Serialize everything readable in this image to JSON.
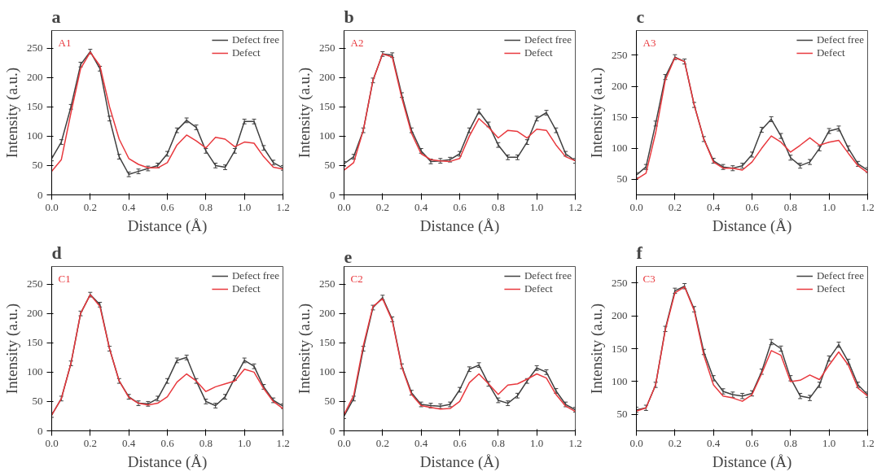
{
  "chart_data": [
    {
      "type": "line",
      "title": "a",
      "annotations": [
        "A1"
      ],
      "xlabel": "Distance (Å)",
      "ylabel": "Intensity (a.u.)",
      "x": [
        0,
        0.05,
        0.1,
        0.15,
        0.2,
        0.25,
        0.3,
        0.35,
        0.4,
        0.45,
        0.5,
        0.55,
        0.6,
        0.65,
        0.7,
        0.75,
        0.8,
        0.85,
        0.9,
        0.95,
        1.0,
        1.05,
        1.1,
        1.15,
        1.2
      ],
      "xlim": [
        0,
        1.2
      ],
      "xticks": [
        {
          "value": 0,
          "label": "0.0"
        },
        {
          "value": 0.2,
          "label": "0.2"
        },
        {
          "value": 0.4,
          "label": "0.4"
        },
        {
          "value": 0.6,
          "label": "0.6"
        },
        {
          "value": 0.8,
          "label": "0.8"
        },
        {
          "value": 1,
          "label": "1.0"
        },
        {
          "value": 1.2,
          "label": "1.2"
        }
      ],
      "ylim": [
        0,
        280
      ],
      "yticks": [
        0,
        50,
        100,
        150,
        200,
        250
      ],
      "grid": false,
      "legend": "top right",
      "series": [
        {
          "name": "Defect free",
          "color": "#404040",
          "values": [
            62,
            90,
            150,
            222,
            244,
            215,
            130,
            65,
            35,
            40,
            45,
            50,
            70,
            110,
            127,
            115,
            75,
            50,
            47,
            75,
            125,
            125,
            80,
            55,
            46
          ],
          "errors": [
            4,
            4,
            4,
            4,
            4,
            4,
            4,
            4,
            4,
            4,
            4,
            4,
            4,
            4,
            4,
            4,
            4,
            4,
            4,
            4,
            4,
            4,
            4,
            4,
            4
          ]
        },
        {
          "name": "Defect",
          "color": "#e8383d",
          "values": [
            40,
            60,
            140,
            215,
            243,
            220,
            150,
            95,
            62,
            52,
            46,
            46,
            55,
            85,
            102,
            92,
            80,
            98,
            95,
            82,
            90,
            88,
            65,
            47,
            44
          ]
        }
      ]
    },
    {
      "type": "line",
      "title": "b",
      "annotations": [
        "A2"
      ],
      "xlabel": "Distance (Å)",
      "ylabel": "Intensity (a.u.)",
      "x": [
        0,
        0.05,
        0.1,
        0.15,
        0.2,
        0.25,
        0.3,
        0.35,
        0.4,
        0.45,
        0.5,
        0.55,
        0.6,
        0.65,
        0.7,
        0.75,
        0.8,
        0.85,
        0.9,
        0.95,
        1.0,
        1.05,
        1.1,
        1.15,
        1.2
      ],
      "xlim": [
        0,
        1.2
      ],
      "xticks": [
        {
          "value": 0,
          "label": "0.0"
        },
        {
          "value": 0.2,
          "label": "0.2"
        },
        {
          "value": 0.4,
          "label": "0.4"
        },
        {
          "value": 0.6,
          "label": "0.6"
        },
        {
          "value": 0.8,
          "label": "0.8"
        },
        {
          "value": 1,
          "label": "1.0"
        },
        {
          "value": 1.2,
          "label": "1.2"
        }
      ],
      "ylim": [
        0,
        280
      ],
      "yticks": [
        0,
        50,
        100,
        150,
        200,
        250
      ],
      "grid": false,
      "legend": "top right",
      "series": [
        {
          "name": "Defect free",
          "color": "#404040",
          "values": [
            53,
            65,
            110,
            195,
            240,
            238,
            170,
            110,
            75,
            57,
            58,
            60,
            70,
            110,
            142,
            120,
            85,
            64,
            64,
            90,
            130,
            140,
            110,
            70,
            58
          ],
          "errors": [
            4,
            4,
            4,
            4,
            4,
            4,
            4,
            4,
            4,
            4,
            4,
            4,
            4,
            4,
            4,
            4,
            4,
            4,
            4,
            4,
            4,
            4,
            4,
            4,
            4
          ]
        },
        {
          "name": "Defect",
          "color": "#e8383d",
          "values": [
            42,
            55,
            110,
            195,
            240,
            235,
            165,
            105,
            70,
            60,
            58,
            57,
            62,
            100,
            130,
            115,
            97,
            110,
            108,
            97,
            112,
            110,
            85,
            65,
            58
          ]
        }
      ]
    },
    {
      "type": "line",
      "title": "c",
      "annotations": [
        "A3"
      ],
      "xlabel": "Distance (Å)",
      "ylabel": "Intensity (a.u.)",
      "x": [
        0,
        0.05,
        0.1,
        0.15,
        0.2,
        0.25,
        0.3,
        0.35,
        0.4,
        0.45,
        0.5,
        0.55,
        0.6,
        0.65,
        0.7,
        0.75,
        0.8,
        0.85,
        0.9,
        0.95,
        1.0,
        1.05,
        1.1,
        1.15,
        1.2
      ],
      "xlim": [
        0,
        1.2
      ],
      "xticks": [
        {
          "value": 0,
          "label": "0.0"
        },
        {
          "value": 0.2,
          "label": "0.2"
        },
        {
          "value": 0.4,
          "label": "0.4"
        },
        {
          "value": 0.6,
          "label": "0.6"
        },
        {
          "value": 0.8,
          "label": "0.8"
        },
        {
          "value": 1,
          "label": "1.0"
        },
        {
          "value": 1.2,
          "label": "1.2"
        }
      ],
      "ylim": [
        25,
        290
      ],
      "yticks": [
        50,
        100,
        150,
        200,
        250
      ],
      "grid": false,
      "legend": "top right",
      "series": [
        {
          "name": "Defect free",
          "color": "#404040",
          "values": [
            57,
            70,
            140,
            215,
            247,
            240,
            170,
            115,
            80,
            70,
            68,
            72,
            90,
            130,
            147,
            120,
            85,
            72,
            78,
            100,
            128,
            132,
            100,
            75,
            65
          ],
          "errors": [
            4,
            4,
            4,
            4,
            4,
            4,
            4,
            4,
            4,
            4,
            4,
            4,
            4,
            4,
            4,
            4,
            4,
            4,
            4,
            4,
            4,
            4,
            4,
            4,
            4
          ]
        },
        {
          "name": "Defect",
          "color": "#e8383d",
          "values": [
            50,
            60,
            125,
            210,
            246,
            240,
            170,
            115,
            78,
            68,
            68,
            65,
            78,
            100,
            120,
            110,
            94,
            105,
            117,
            105,
            110,
            113,
            92,
            72,
            61
          ]
        }
      ]
    },
    {
      "type": "line",
      "title": "d",
      "annotations": [
        "C1"
      ],
      "xlabel": "Distance (Å)",
      "ylabel": "Intensity (a.u.)",
      "x": [
        0,
        0.05,
        0.1,
        0.15,
        0.2,
        0.25,
        0.3,
        0.35,
        0.4,
        0.45,
        0.5,
        0.55,
        0.6,
        0.65,
        0.7,
        0.75,
        0.8,
        0.85,
        0.9,
        0.95,
        1.0,
        1.05,
        1.1,
        1.15,
        1.2
      ],
      "xlim": [
        0,
        1.2
      ],
      "xticks": [
        {
          "value": 0,
          "label": "0.0"
        },
        {
          "value": 0.2,
          "label": "0.2"
        },
        {
          "value": 0.4,
          "label": "0.4"
        },
        {
          "value": 0.6,
          "label": "0.6"
        },
        {
          "value": 0.8,
          "label": "0.8"
        },
        {
          "value": 1,
          "label": "1.0"
        },
        {
          "value": 1.2,
          "label": "1.2"
        }
      ],
      "ylim": [
        0,
        280
      ],
      "yticks": [
        0,
        50,
        100,
        150,
        200,
        250
      ],
      "grid": false,
      "legend": "top right",
      "series": [
        {
          "name": "Defect free",
          "color": "#404040",
          "values": [
            27,
            55,
            115,
            200,
            232,
            215,
            140,
            85,
            58,
            47,
            46,
            55,
            85,
            120,
            125,
            85,
            50,
            43,
            58,
            90,
            120,
            110,
            75,
            52,
            42
          ],
          "errors": [
            4,
            4,
            4,
            4,
            4,
            4,
            4,
            4,
            4,
            4,
            4,
            4,
            4,
            4,
            4,
            4,
            4,
            4,
            4,
            4,
            4,
            4,
            4,
            4,
            4
          ]
        },
        {
          "name": "Defect",
          "color": "#e8383d",
          "values": [
            27,
            55,
            115,
            200,
            232,
            212,
            140,
            85,
            57,
            47,
            44,
            47,
            58,
            83,
            97,
            85,
            67,
            75,
            80,
            85,
            105,
            100,
            72,
            50,
            38
          ]
        }
      ]
    },
    {
      "type": "line",
      "title": "e",
      "annotations": [
        "C2"
      ],
      "xlabel": "Distance (Å)",
      "ylabel": "Intensity (a.u.)",
      "x": [
        0,
        0.05,
        0.1,
        0.15,
        0.2,
        0.25,
        0.3,
        0.35,
        0.4,
        0.45,
        0.5,
        0.55,
        0.6,
        0.65,
        0.7,
        0.75,
        0.8,
        0.85,
        0.9,
        0.95,
        1.0,
        1.05,
        1.1,
        1.15,
        1.2
      ],
      "xlim": [
        0,
        1.2
      ],
      "xticks": [
        {
          "value": 0,
          "label": "0.0"
        },
        {
          "value": 0.2,
          "label": "0.2"
        },
        {
          "value": 0.4,
          "label": "0.4"
        },
        {
          "value": 0.6,
          "label": "0.6"
        },
        {
          "value": 0.8,
          "label": "0.8"
        },
        {
          "value": 1,
          "label": "1.0"
        },
        {
          "value": 1.2,
          "label": "1.2"
        }
      ],
      "ylim": [
        0,
        280
      ],
      "yticks": [
        0,
        50,
        100,
        150,
        200,
        250
      ],
      "grid": false,
      "legend": "top right",
      "series": [
        {
          "name": "Defect free",
          "color": "#404040",
          "values": [
            25,
            55,
            140,
            210,
            227,
            190,
            110,
            65,
            45,
            43,
            42,
            45,
            70,
            105,
            112,
            80,
            52,
            47,
            60,
            85,
            107,
            100,
            68,
            45,
            36
          ],
          "errors": [
            4,
            4,
            4,
            4,
            4,
            4,
            4,
            4,
            4,
            4,
            4,
            4,
            4,
            4,
            4,
            4,
            4,
            4,
            4,
            4,
            4,
            4,
            4,
            4,
            4
          ]
        },
        {
          "name": "Defect",
          "color": "#e8383d",
          "values": [
            28,
            60,
            145,
            212,
            225,
            188,
            108,
            62,
            43,
            40,
            37,
            38,
            50,
            82,
            97,
            80,
            62,
            78,
            80,
            88,
            97,
            90,
            62,
            42,
            33
          ]
        }
      ]
    },
    {
      "type": "line",
      "title": "f",
      "annotations": [
        "C3"
      ],
      "xlabel": "Distance (Å)",
      "ylabel": "Intensity (a.u.)",
      "x": [
        0,
        0.05,
        0.1,
        0.15,
        0.2,
        0.25,
        0.3,
        0.35,
        0.4,
        0.45,
        0.5,
        0.55,
        0.6,
        0.65,
        0.7,
        0.75,
        0.8,
        0.85,
        0.9,
        0.95,
        1.0,
        1.05,
        1.1,
        1.15,
        1.2
      ],
      "xlim": [
        0,
        1.2
      ],
      "xticks": [
        {
          "value": 0,
          "label": "0.0"
        },
        {
          "value": 0.2,
          "label": "0.2"
        },
        {
          "value": 0.4,
          "label": "0.4"
        },
        {
          "value": 0.6,
          "label": "0.6"
        },
        {
          "value": 0.8,
          "label": "0.8"
        },
        {
          "value": 1,
          "label": "1.0"
        },
        {
          "value": 1.2,
          "label": "1.2"
        }
      ],
      "ylim": [
        25,
        275
      ],
      "yticks": [
        50,
        100,
        150,
        200,
        250
      ],
      "grid": false,
      "legend": "top right",
      "series": [
        {
          "name": "Defect free",
          "color": "#404040",
          "values": [
            57,
            60,
            95,
            180,
            238,
            245,
            210,
            145,
            105,
            85,
            80,
            78,
            82,
            115,
            160,
            150,
            105,
            78,
            75,
            95,
            135,
            156,
            130,
            95,
            80
          ],
          "errors": [
            4,
            4,
            4,
            4,
            4,
            4,
            4,
            4,
            4,
            4,
            4,
            4,
            4,
            4,
            4,
            4,
            4,
            4,
            4,
            4,
            4,
            4,
            4,
            4,
            4
          ]
        },
        {
          "name": "Defect",
          "color": "#e8383d",
          "values": [
            55,
            60,
            95,
            178,
            235,
            244,
            208,
            140,
            95,
            78,
            75,
            70,
            80,
            112,
            147,
            140,
            100,
            102,
            110,
            103,
            125,
            145,
            125,
            90,
            78
          ]
        }
      ]
    }
  ]
}
